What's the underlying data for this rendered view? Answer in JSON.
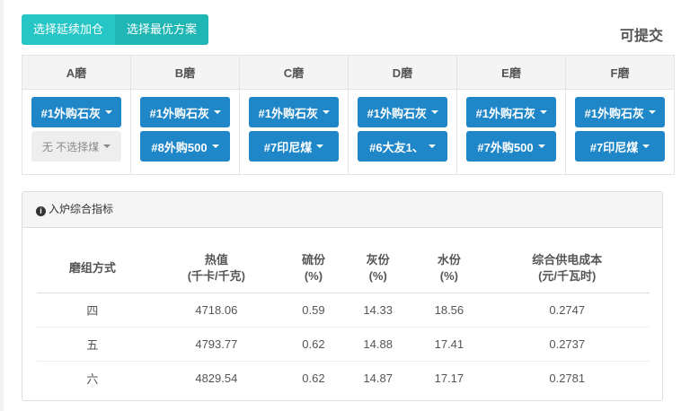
{
  "toolbar": {
    "btn_continue": "选择延续加仓",
    "btn_optimal": "选择最优方案",
    "status": "可提交"
  },
  "mills": [
    {
      "name": "A磨",
      "sel1": "#1外购石灰",
      "sel2": "无 不选择煤"
    },
    {
      "name": "B磨",
      "sel1": "#1外购石灰",
      "sel2": "#8外购500"
    },
    {
      "name": "C磨",
      "sel1": "#1外购石灰",
      "sel2": "#7印尼煤"
    },
    {
      "name": "D磨",
      "sel1": "#1外购石灰",
      "sel2": "#6大友1、"
    },
    {
      "name": "E磨",
      "sel1": "#1外购石灰",
      "sel2": "#7外购500"
    },
    {
      "name": "F磨",
      "sel1": "#1外购石灰",
      "sel2": "#7印尼煤"
    }
  ],
  "panel": {
    "title": "入炉综合指标",
    "headers": [
      [
        "磨组方式",
        ""
      ],
      [
        "热值",
        "(千卡/千克)"
      ],
      [
        "硫份",
        "(%)"
      ],
      [
        "灰份",
        "(%)"
      ],
      [
        "水份",
        "(%)"
      ],
      [
        "综合供电成本",
        "(元/千瓦时)"
      ]
    ],
    "rows": [
      [
        "四",
        "4718.06",
        "0.59",
        "14.33",
        "18.56",
        "0.2747"
      ],
      [
        "五",
        "4793.77",
        "0.62",
        "14.88",
        "17.41",
        "0.2737"
      ],
      [
        "六",
        "4829.54",
        "0.62",
        "14.87",
        "17.17",
        "0.2781"
      ]
    ]
  }
}
